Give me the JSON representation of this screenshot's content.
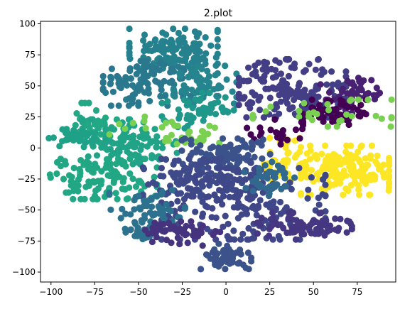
{
  "chart_data": {
    "type": "scatter",
    "title": "2.plot",
    "xlabel": "",
    "ylabel": "",
    "xlim": [
      -106,
      97
    ],
    "ylim": [
      -108,
      102
    ],
    "xticks": [
      -100,
      -75,
      -50,
      -25,
      0,
      25,
      50,
      75
    ],
    "yticks": [
      -100,
      -75,
      -50,
      -25,
      0,
      25,
      50,
      75,
      100
    ],
    "grid": false,
    "legend": "none",
    "colormap": "viridis",
    "clusters": [
      {
        "center": [
          -30,
          78
        ],
        "spread": [
          14,
          10
        ],
        "count": 140,
        "color": "#26818e"
      },
      {
        "center": [
          -45,
          52
        ],
        "spread": [
          14,
          10
        ],
        "count": 110,
        "color": "#2a788e"
      },
      {
        "center": [
          -12,
          50
        ],
        "spread": [
          10,
          9
        ],
        "count": 60,
        "color": "#25858e"
      },
      {
        "center": [
          -15,
          30
        ],
        "spread": [
          12,
          8
        ],
        "count": 50,
        "color": "#1f988b"
      },
      {
        "center": [
          -75,
          20
        ],
        "spread": [
          7,
          9
        ],
        "count": 40,
        "color": "#22a884"
      },
      {
        "center": [
          -55,
          5
        ],
        "spread": [
          15,
          10
        ],
        "count": 110,
        "color": "#20a386"
      },
      {
        "center": [
          -85,
          8
        ],
        "spread": [
          9,
          4
        ],
        "count": 40,
        "color": "#1fa187"
      },
      {
        "center": [
          -70,
          -25
        ],
        "spread": [
          17,
          9
        ],
        "count": 110,
        "color": "#22a785"
      },
      {
        "center": [
          -20,
          10
        ],
        "spread": [
          9,
          5
        ],
        "count": 25,
        "color": "#7ad151"
      },
      {
        "center": [
          38,
          48
        ],
        "spread": [
          17,
          13
        ],
        "count": 170,
        "color": "#433e85"
      },
      {
        "center": [
          72,
          42
        ],
        "spread": [
          10,
          8
        ],
        "count": 50,
        "color": "#482173"
      },
      {
        "center": [
          62,
          28
        ],
        "spread": [
          10,
          6
        ],
        "count": 60,
        "color": "#440154"
      },
      {
        "center": [
          55,
          28
        ],
        "spread": [
          22,
          6
        ],
        "count": 30,
        "color": "#7ad151"
      },
      {
        "center": [
          68,
          -18
        ],
        "spread": [
          14,
          11
        ],
        "count": 170,
        "color": "#fde725"
      },
      {
        "center": [
          34,
          -10
        ],
        "spread": [
          8,
          10
        ],
        "count": 50,
        "color": "#fde725"
      },
      {
        "center": [
          30,
          12
        ],
        "spread": [
          10,
          6
        ],
        "count": 20,
        "color": "#440154"
      },
      {
        "center": [
          0,
          -5
        ],
        "spread": [
          14,
          7
        ],
        "count": 80,
        "color": "#3b528b"
      },
      {
        "center": [
          -15,
          -25
        ],
        "spread": [
          18,
          9
        ],
        "count": 110,
        "color": "#3e4a89"
      },
      {
        "center": [
          10,
          -45
        ],
        "spread": [
          26,
          16
        ],
        "count": 200,
        "color": "#3f4788"
      },
      {
        "center": [
          -45,
          -52
        ],
        "spread": [
          12,
          10
        ],
        "count": 60,
        "color": "#2c728e"
      },
      {
        "center": [
          -48,
          -68
        ],
        "spread": [
          5,
          3
        ],
        "count": 20,
        "color": "#2c728e"
      },
      {
        "center": [
          45,
          -63
        ],
        "spread": [
          15,
          6
        ],
        "count": 80,
        "color": "#453781"
      },
      {
        "center": [
          0,
          -88
        ],
        "spread": [
          8,
          6
        ],
        "count": 50,
        "color": "#3b528b"
      },
      {
        "center": [
          -25,
          -70
        ],
        "spread": [
          12,
          6
        ],
        "count": 50,
        "color": "#46337e"
      },
      {
        "center": [
          25,
          -25
        ],
        "spread": [
          8,
          8
        ],
        "count": 40,
        "color": "#31688e"
      },
      {
        "center": [
          -45,
          18
        ],
        "spread": [
          12,
          4
        ],
        "count": 12,
        "color": "#7ad151"
      }
    ]
  }
}
